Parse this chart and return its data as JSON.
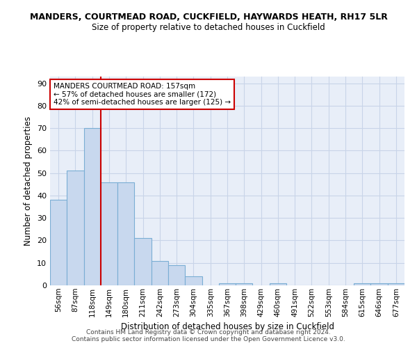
{
  "title1": "MANDERS, COURTMEAD ROAD, CUCKFIELD, HAYWARDS HEATH, RH17 5LR",
  "title2": "Size of property relative to detached houses in Cuckfield",
  "xlabel": "Distribution of detached houses by size in Cuckfield",
  "ylabel": "Number of detached properties",
  "footer1": "Contains HM Land Registry data © Crown copyright and database right 2024.",
  "footer2": "Contains public sector information licensed under the Open Government Licence v3.0.",
  "bin_labels": [
    "56sqm",
    "87sqm",
    "118sqm",
    "149sqm",
    "180sqm",
    "211sqm",
    "242sqm",
    "273sqm",
    "304sqm",
    "335sqm",
    "367sqm",
    "398sqm",
    "429sqm",
    "460sqm",
    "491sqm",
    "522sqm",
    "553sqm",
    "584sqm",
    "615sqm",
    "646sqm",
    "677sqm"
  ],
  "bar_heights": [
    38,
    51,
    70,
    46,
    46,
    21,
    11,
    9,
    4,
    0,
    1,
    1,
    0,
    1,
    0,
    0,
    0,
    0,
    1,
    1,
    1
  ],
  "bar_color": "#c8d8ee",
  "bar_edge_color": "#7aaed4",
  "grid_color": "#c8d4e8",
  "background_color": "#e8eef8",
  "vline_color": "#cc0000",
  "annotation_text": "MANDERS COURTMEAD ROAD: 157sqm\n← 57% of detached houses are smaller (172)\n42% of semi-detached houses are larger (125) →",
  "annotation_box_color": "#ffffff",
  "annotation_box_edge": "#cc0000",
  "ylim": [
    0,
    93
  ],
  "yticks": [
    0,
    10,
    20,
    30,
    40,
    50,
    60,
    70,
    80,
    90
  ]
}
